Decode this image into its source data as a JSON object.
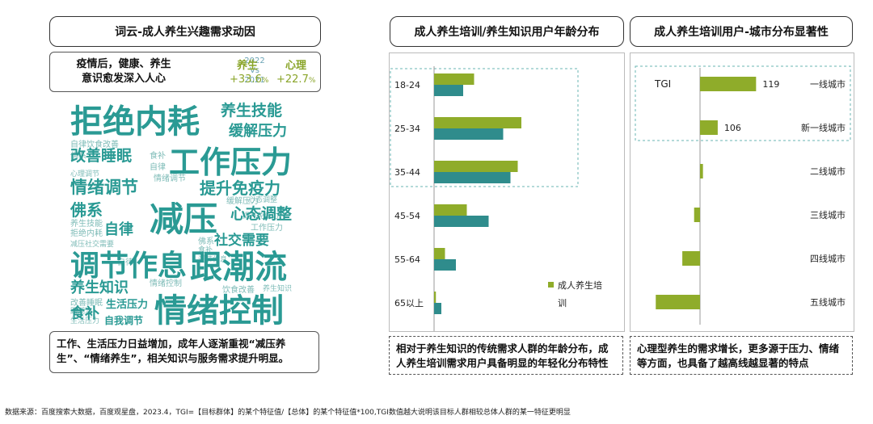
{
  "left": {
    "title": "词云-成人养生兴趣需求动因",
    "stat_text": [
      "疫情后，健康、养生",
      "意识愈发深入人心"
    ],
    "compare": [
      "2022",
      "Vs",
      "2021"
    ],
    "metrics": [
      {
        "label": "养生",
        "value": "+33.6",
        "unit": "%"
      },
      {
        "label": "心理",
        "value": "+22.7",
        "unit": "%"
      }
    ],
    "note": "工作、生活压力日益增加，成年人逐渐重视“减压养生”、“情绪养生”，相关知识与服务需求提升明显。"
  },
  "word_cloud": {
    "major": [
      "拒绝内耗",
      "工作压力",
      "减压",
      "调节作息",
      "跟潮流",
      "情绪控制",
      "情绪调节",
      "养生技能",
      "缓解压力",
      "改善睡眠",
      "提升免疫力",
      "心态调整",
      "佛系",
      "自律",
      "社交需要",
      "养生知识",
      "食补",
      "生活压力",
      "自我调节",
      "心理调节",
      "跟潮流"
    ],
    "minor": [
      "自律饮食改善",
      "佛系",
      "食补",
      "自律",
      "情绪调节",
      "拒绝内耗",
      "缓解压力",
      "心理调节",
      "减压社交需要",
      "养生技能",
      "改善睡眠",
      "情绪控制",
      "饮食改善",
      "心态调整",
      "佛系",
      "食补",
      "自律",
      "工作压力",
      "调节作息",
      "提升免疫力",
      "养生知识",
      "跟潮流",
      "生活压力"
    ]
  },
  "age_chart": {
    "title": "成人养生培训/养生知识用户年龄分布",
    "legend": [
      "成人养生培",
      "训"
    ],
    "note": "相对于养生知识的传统需求人群的年龄分布，成人养生培训需求用户具备明显的年轻化分布特性",
    "colors": {
      "training": "#8fac2a",
      "knowledge": "#2f8c8c"
    }
  },
  "city_chart": {
    "title": "成人养生培训用户-城市分布显著性",
    "tgi_label": "TGI",
    "note": "心理型养生的需求增长，更多源于压力、情绪等方面，也具备了越高线越显著的特点",
    "color": "#8fac2a"
  },
  "chart_data": [
    {
      "type": "bar",
      "orientation": "horizontal",
      "categories": [
        "18-24",
        "25-34",
        "35-44",
        "45-54",
        "55-64",
        "65以上"
      ],
      "series": [
        {
          "name": "成人养生培训",
          "values": [
            11,
            24,
            23,
            9,
            3,
            0.5
          ]
        },
        {
          "name": "",
          "values": [
            8,
            19,
            21,
            15,
            6,
            2
          ]
        }
      ],
      "legend_position": "bottom-right",
      "grid": false
    },
    {
      "type": "bar",
      "orientation": "horizontal",
      "categories": [
        "一线城市",
        "新一线城市",
        "二线城市",
        "三线城市",
        "四线城市",
        "五线城市"
      ],
      "values": [
        119,
        106,
        101,
        98,
        94,
        85
      ],
      "value_labels": [
        "119",
        "106",
        "",
        "",
        "",
        ""
      ],
      "baseline": 100,
      "grid": false
    }
  ],
  "footer": "数据来源：百度搜索大数据，百度观星盘，2023.4，TGI=【目标群体】的某个特征值/【总体】的某个特征值*100,TGI数值越大说明该目标人群相较总体人群的某一特征更明显"
}
